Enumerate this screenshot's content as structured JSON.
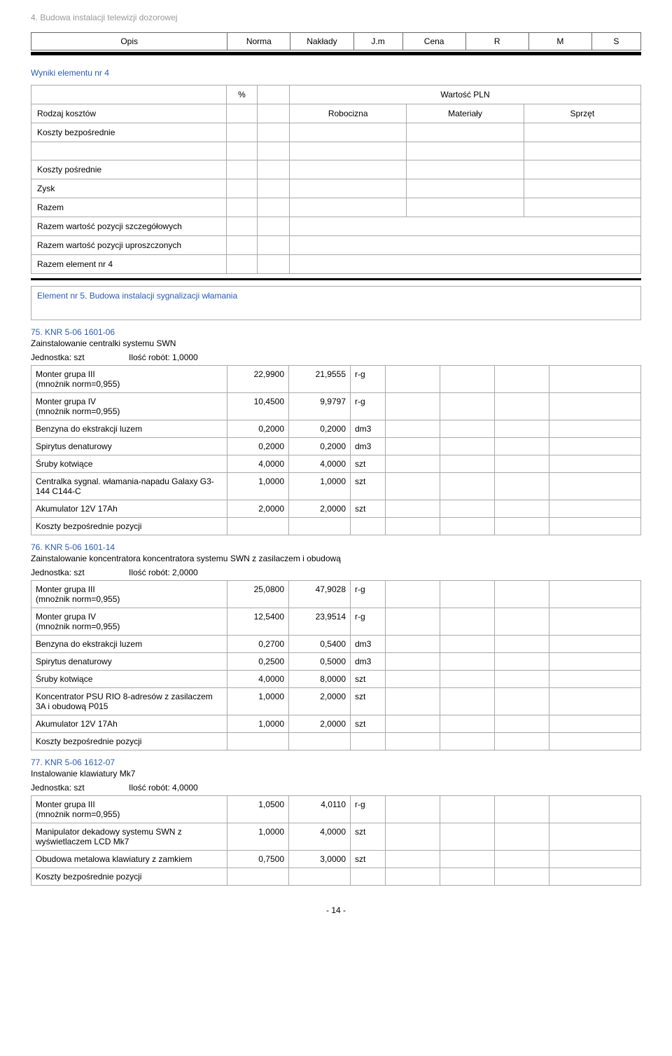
{
  "breadcrumb": "4. Budowa instalacji telewizji dozorowej",
  "header": {
    "opis": "Opis",
    "norma": "Norma",
    "naklady": "Nakłady",
    "jm": "J.m",
    "cena": "Cena",
    "r": "R",
    "m": "M",
    "s": "S"
  },
  "wyniki_title": "Wyniki elementu nr 4",
  "summary": {
    "pct": "%",
    "wartosc": "Wartość PLN",
    "rodzaj": "Rodzaj kosztów",
    "rob": "Robocizna",
    "mat": "Materiały",
    "spr": "Sprzęt",
    "rows": {
      "bezposrednie": "Koszty bezpośrednie",
      "empty": "",
      "posrednie": "Koszty pośrednie",
      "zysk": "Zysk",
      "razem": "Razem",
      "razem_szcz": "Razem wartość pozycji szczegółowych",
      "razem_upr": "Razem wartość pozycji uproszczonych",
      "razem_el": "Razem element nr 4"
    }
  },
  "element5": "Element nr 5. Budowa instalacji sygnalizacji włamania",
  "items": [
    {
      "code": "75. KNR 5-06 1601-06",
      "desc": "Zainstalowanie centralki systemu SWN",
      "unit": "Jednostka: szt",
      "qty": "Ilość robót: 1,0000",
      "rows": [
        {
          "name": "Monter grupa III",
          "sub": "(mnożnik norm=0,955)",
          "norma": "22,9900",
          "naklady": "21,9555",
          "jm": "r-g"
        },
        {
          "name": "Monter grupa IV",
          "sub": "(mnożnik norm=0,955)",
          "norma": "10,4500",
          "naklady": "9,9797",
          "jm": "r-g"
        },
        {
          "name": "Benzyna do ekstrakcji luzem",
          "norma": "0,2000",
          "naklady": "0,2000",
          "jm": "dm3"
        },
        {
          "name": "Spirytus denaturowy",
          "norma": "0,2000",
          "naklady": "0,2000",
          "jm": "dm3"
        },
        {
          "name": "Śruby kotwiące",
          "norma": "4,0000",
          "naklady": "4,0000",
          "jm": "szt"
        },
        {
          "name": "Centralka sygnal. włamania-napadu Galaxy G3-144 C144-C",
          "norma": "1,0000",
          "naklady": "1,0000",
          "jm": "szt"
        },
        {
          "name": "Akumulator 12V 17Ah",
          "norma": "2,0000",
          "naklady": "2,0000",
          "jm": "szt"
        }
      ],
      "footer": "Koszty bezpośrednie pozycji"
    },
    {
      "code": "76. KNR 5-06 1601-14",
      "desc": "Zainstalowanie koncentratora koncentratora systemu SWN z zasilaczem i obudową",
      "unit": "Jednostka: szt",
      "qty": "Ilość robót: 2,0000",
      "rows": [
        {
          "name": "Monter grupa III",
          "sub": "(mnożnik norm=0,955)",
          "norma": "25,0800",
          "naklady": "47,9028",
          "jm": "r-g"
        },
        {
          "name": "Monter grupa IV",
          "sub": "(mnożnik norm=0,955)",
          "norma": "12,5400",
          "naklady": "23,9514",
          "jm": "r-g"
        },
        {
          "name": "Benzyna do ekstrakcji luzem",
          "norma": "0,2700",
          "naklady": "0,5400",
          "jm": "dm3"
        },
        {
          "name": "Spirytus denaturowy",
          "norma": "0,2500",
          "naklady": "0,5000",
          "jm": "dm3"
        },
        {
          "name": "Śruby kotwiące",
          "norma": "4,0000",
          "naklady": "8,0000",
          "jm": "szt"
        },
        {
          "name": "Koncentrator PSU RIO 8-adresów z zasilaczem 3A i obudową P015",
          "norma": "1,0000",
          "naklady": "2,0000",
          "jm": "szt"
        },
        {
          "name": "Akumulator 12V 17Ah",
          "norma": "1,0000",
          "naklady": "2,0000",
          "jm": "szt"
        }
      ],
      "footer": "Koszty bezpośrednie pozycji"
    },
    {
      "code": "77. KNR 5-06 1612-07",
      "desc": "Instalowanie klawiatury Mk7",
      "unit": "Jednostka: szt",
      "qty": "Ilość robót: 4,0000",
      "rows": [
        {
          "name": "Monter grupa III",
          "sub": "(mnożnik norm=0,955)",
          "norma": "1,0500",
          "naklady": "4,0110",
          "jm": "r-g"
        },
        {
          "name": "Manipulator dekadowy systemu SWN z wyświetlaczem LCD Mk7",
          "norma": "1,0000",
          "naklady": "4,0000",
          "jm": "szt"
        },
        {
          "name": "Obudowa metalowa klawiatury z zamkiem",
          "norma": "0,7500",
          "naklady": "3,0000",
          "jm": "szt"
        }
      ],
      "footer": "Koszty bezpośrednie pozycji"
    }
  ],
  "page_num": "- 14 -"
}
